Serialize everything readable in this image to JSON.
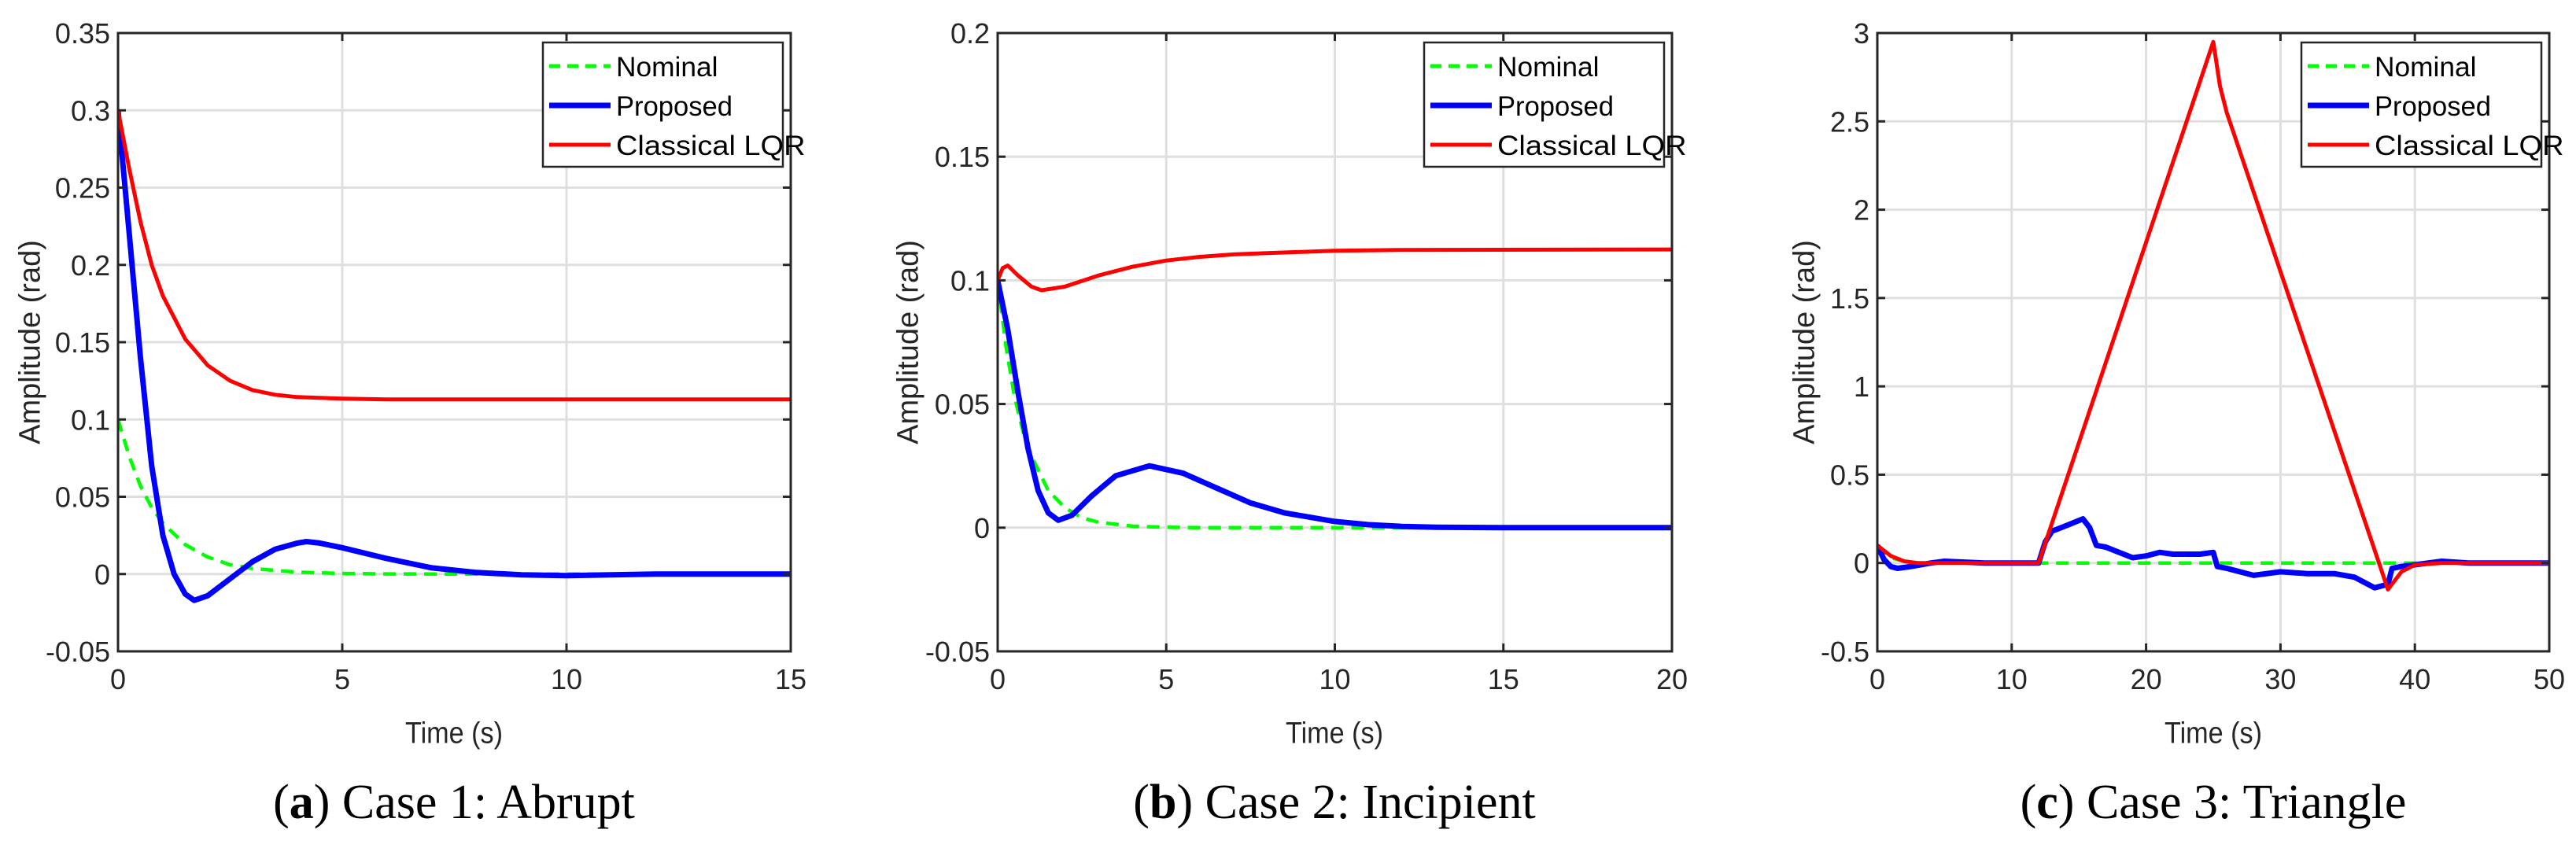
{
  "chart_data": [
    {
      "type": "line",
      "xlabel": "Time (s)",
      "ylabel": "Amplitude (rad)",
      "xlim": [
        0,
        15
      ],
      "ylim": [
        -0.05,
        0.35
      ],
      "xticks": [
        0,
        5,
        10,
        15
      ],
      "xtick_labels": [
        "0",
        "5",
        "10",
        "15"
      ],
      "yticks": [
        -0.05,
        0,
        0.05,
        0.1,
        0.15,
        0.2,
        0.25,
        0.3,
        0.35
      ],
      "ytick_labels": [
        "-0.05",
        "0",
        "0.05",
        "0.1",
        "0.15",
        "0.2",
        "0.25",
        "0.3",
        "0.35"
      ],
      "grid": true,
      "legend_position": "top-right",
      "caption": {
        "label": "a",
        "text": "Case 1: Abrupt"
      },
      "series": [
        {
          "name": "Nominal",
          "color": "#00ff00",
          "style": "dashed",
          "points": [
            [
              0,
              0.1
            ],
            [
              0.25,
              0.076
            ],
            [
              0.5,
              0.057
            ],
            [
              0.75,
              0.043
            ],
            [
              1,
              0.033
            ],
            [
              1.5,
              0.019
            ],
            [
              2,
              0.011
            ],
            [
              2.5,
              0.006
            ],
            [
              3,
              0.0036
            ],
            [
              4,
              0.0012
            ],
            [
              5,
              0.0004
            ],
            [
              6,
              0.0001
            ],
            [
              8,
              0
            ],
            [
              15,
              0
            ]
          ]
        },
        {
          "name": "Proposed",
          "color": "#0000ff",
          "style": "solid",
          "points": [
            [
              0,
              0.3
            ],
            [
              0.25,
              0.22
            ],
            [
              0.5,
              0.14
            ],
            [
              0.75,
              0.07
            ],
            [
              1,
              0.025
            ],
            [
              1.25,
              0
            ],
            [
              1.5,
              -0.013
            ],
            [
              1.7,
              -0.017
            ],
            [
              2,
              -0.014
            ],
            [
              2.5,
              -0.003
            ],
            [
              3,
              0.008
            ],
            [
              3.5,
              0.016
            ],
            [
              4,
              0.02
            ],
            [
              4.2,
              0.021
            ],
            [
              4.5,
              0.02
            ],
            [
              5,
              0.017
            ],
            [
              6,
              0.01
            ],
            [
              7,
              0.004
            ],
            [
              8,
              0.001
            ],
            [
              9,
              -0.0005
            ],
            [
              10,
              -0.001
            ],
            [
              11,
              -0.0005
            ],
            [
              12,
              0
            ],
            [
              15,
              0
            ]
          ]
        },
        {
          "name": "Classical LQR",
          "color": "#ff0000",
          "style": "solid",
          "points": [
            [
              0,
              0.3
            ],
            [
              0.25,
              0.262
            ],
            [
              0.5,
              0.228
            ],
            [
              0.75,
              0.2
            ],
            [
              1,
              0.18
            ],
            [
              1.5,
              0.152
            ],
            [
              2,
              0.135
            ],
            [
              2.5,
              0.125
            ],
            [
              3,
              0.119
            ],
            [
              3.5,
              0.116
            ],
            [
              4,
              0.1145
            ],
            [
              5,
              0.1135
            ],
            [
              6,
              0.113
            ],
            [
              15,
              0.113
            ]
          ]
        }
      ]
    },
    {
      "type": "line",
      "xlabel": "Time (s)",
      "ylabel": "Amplitude (rad)",
      "xlim": [
        0,
        20
      ],
      "ylim": [
        -0.05,
        0.2
      ],
      "xticks": [
        0,
        5,
        10,
        15,
        20
      ],
      "xtick_labels": [
        "0",
        "5",
        "10",
        "15",
        "20"
      ],
      "yticks": [
        -0.05,
        0,
        0.05,
        0.1,
        0.15,
        0.2
      ],
      "ytick_labels": [
        "-0.05",
        "0",
        "0.05",
        "0.1",
        "0.15",
        "0.2"
      ],
      "grid": true,
      "legend_position": "top-right",
      "caption": {
        "label": "b",
        "text": "Case 2: Incipient"
      },
      "series": [
        {
          "name": "Nominal",
          "color": "#00ff00",
          "style": "dashed",
          "points": [
            [
              0,
              0.1
            ],
            [
              0.25,
              0.073
            ],
            [
              0.5,
              0.053
            ],
            [
              0.75,
              0.039
            ],
            [
              1,
              0.029
            ],
            [
              1.5,
              0.015
            ],
            [
              2,
              0.008
            ],
            [
              2.5,
              0.004
            ],
            [
              3,
              0.0022
            ],
            [
              4,
              0.0006
            ],
            [
              5,
              0.0002
            ],
            [
              6,
              0
            ],
            [
              20,
              0
            ]
          ]
        },
        {
          "name": "Proposed",
          "color": "#0000ff",
          "style": "solid",
          "points": [
            [
              0,
              0.1
            ],
            [
              0.3,
              0.08
            ],
            [
              0.6,
              0.055
            ],
            [
              0.9,
              0.032
            ],
            [
              1.2,
              0.015
            ],
            [
              1.5,
              0.006
            ],
            [
              1.8,
              0.003
            ],
            [
              2.2,
              0.005
            ],
            [
              2.8,
              0.013
            ],
            [
              3.5,
              0.021
            ],
            [
              4.5,
              0.025
            ],
            [
              5.5,
              0.022
            ],
            [
              6.5,
              0.016
            ],
            [
              7.5,
              0.01
            ],
            [
              8.5,
              0.006
            ],
            [
              10,
              0.0025
            ],
            [
              11,
              0.0012
            ],
            [
              12,
              0.0005
            ],
            [
              13,
              0.0002
            ],
            [
              15,
              0
            ],
            [
              20,
              0
            ]
          ]
        },
        {
          "name": "Classical LQR",
          "color": "#ff0000",
          "style": "solid",
          "points": [
            [
              0,
              0.1
            ],
            [
              0.15,
              0.105
            ],
            [
              0.3,
              0.106
            ],
            [
              0.6,
              0.102
            ],
            [
              1,
              0.0975
            ],
            [
              1.3,
              0.096
            ],
            [
              2,
              0.0975
            ],
            [
              3,
              0.102
            ],
            [
              4,
              0.1055
            ],
            [
              5,
              0.108
            ],
            [
              6,
              0.1095
            ],
            [
              7,
              0.1105
            ],
            [
              8,
              0.111
            ],
            [
              10,
              0.112
            ],
            [
              12,
              0.1123
            ],
            [
              20,
              0.1125
            ]
          ]
        }
      ]
    },
    {
      "type": "line",
      "xlabel": "Time (s)",
      "ylabel": "Amplitude (rad)",
      "xlim": [
        0,
        50
      ],
      "ylim": [
        -0.5,
        3
      ],
      "xticks": [
        0,
        10,
        20,
        30,
        40,
        50
      ],
      "xtick_labels": [
        "0",
        "10",
        "20",
        "30",
        "40",
        "50"
      ],
      "yticks": [
        -0.5,
        0,
        0.5,
        1,
        1.5,
        2,
        2.5,
        3
      ],
      "ytick_labels": [
        "-0.5",
        "0",
        "0.5",
        "1",
        "1.5",
        "2",
        "2.5",
        "3"
      ],
      "grid": true,
      "legend_position": "top-right",
      "caption": {
        "label": "c",
        "text": "Case 3: Triangle"
      },
      "series": [
        {
          "name": "Nominal",
          "color": "#00ff00",
          "style": "dashed",
          "points": [
            [
              0,
              0.1
            ],
            [
              1,
              0.03
            ],
            [
              2,
              0.01
            ],
            [
              3,
              0
            ],
            [
              50,
              0
            ]
          ]
        },
        {
          "name": "Proposed",
          "color": "#0000ff",
          "style": "solid",
          "points": [
            [
              0,
              0.1
            ],
            [
              0.5,
              0.02
            ],
            [
              1,
              -0.02
            ],
            [
              1.5,
              -0.03
            ],
            [
              2.5,
              -0.02
            ],
            [
              4,
              0
            ],
            [
              5,
              0.01
            ],
            [
              8,
              0
            ],
            [
              12,
              0
            ],
            [
              12.5,
              0.12
            ],
            [
              13,
              0.18
            ],
            [
              14,
              0.21
            ],
            [
              15.3,
              0.25
            ],
            [
              15.8,
              0.2
            ],
            [
              16.3,
              0.1
            ],
            [
              17,
              0.09
            ],
            [
              18,
              0.06
            ],
            [
              19,
              0.03
            ],
            [
              20,
              0.04
            ],
            [
              21,
              0.06
            ],
            [
              22,
              0.05
            ],
            [
              24,
              0.05
            ],
            [
              25,
              0.06
            ],
            [
              25.3,
              -0.02
            ],
            [
              26,
              -0.03
            ],
            [
              28,
              -0.07
            ],
            [
              30,
              -0.05
            ],
            [
              32,
              -0.06
            ],
            [
              34,
              -0.06
            ],
            [
              35.5,
              -0.08
            ],
            [
              37,
              -0.14
            ],
            [
              38,
              -0.12
            ],
            [
              38.3,
              -0.03
            ],
            [
              39,
              -0.02
            ],
            [
              40,
              -0.01
            ],
            [
              42,
              0.01
            ],
            [
              44,
              0
            ],
            [
              50,
              0
            ]
          ]
        },
        {
          "name": "Classical LQR",
          "color": "#ff0000",
          "style": "solid",
          "points": [
            [
              0,
              0.1
            ],
            [
              1,
              0.04
            ],
            [
              2,
              0.01
            ],
            [
              3,
              0
            ],
            [
              12,
              0
            ],
            [
              25,
              2.95
            ],
            [
              25.5,
              2.7
            ],
            [
              26,
              2.55
            ],
            [
              38,
              -0.15
            ],
            [
              39,
              -0.05
            ],
            [
              40,
              -0.01
            ],
            [
              42,
              0
            ],
            [
              50,
              0
            ]
          ]
        }
      ]
    }
  ]
}
